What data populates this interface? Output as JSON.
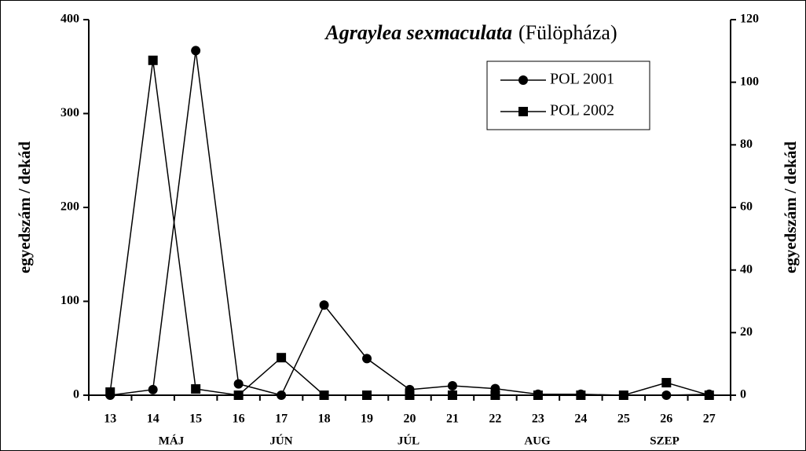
{
  "chart_data": {
    "type": "line",
    "title": "Agraylea sexmaculata",
    "subtitle": "(Fülöpháza)",
    "y_label": "egyedszám / dekád",
    "y2_label": "egyedszám / dekád",
    "categories": [
      "13",
      "14",
      "15",
      "16",
      "17",
      "18",
      "19",
      "20",
      "21",
      "22",
      "23",
      "24",
      "25",
      "26",
      "27"
    ],
    "month_labels": [
      "MÁJ",
      "JÚN",
      "JÚL",
      "AUG",
      "SZEP"
    ],
    "series": [
      {
        "name": "POL 2001",
        "color": "#000000",
        "marker": "circle",
        "values": [
          0,
          6,
          367,
          12,
          0,
          96,
          39,
          6,
          10,
          7,
          1,
          1,
          0,
          0,
          1
        ]
      },
      {
        "name": "POL 2002",
        "color": "#000000",
        "marker": "square",
        "axis": "y2",
        "values": [
          1,
          107,
          2,
          0,
          12,
          0,
          0,
          0,
          0,
          0,
          0,
          0,
          0,
          4,
          0
        ]
      }
    ],
    "ylim": [
      0,
      400
    ],
    "yticks": [
      0,
      100,
      200,
      300,
      400
    ],
    "y2lim": [
      0,
      120
    ],
    "y2ticks": [
      0,
      20,
      40,
      60,
      80,
      100,
      120
    ],
    "grid": false
  }
}
